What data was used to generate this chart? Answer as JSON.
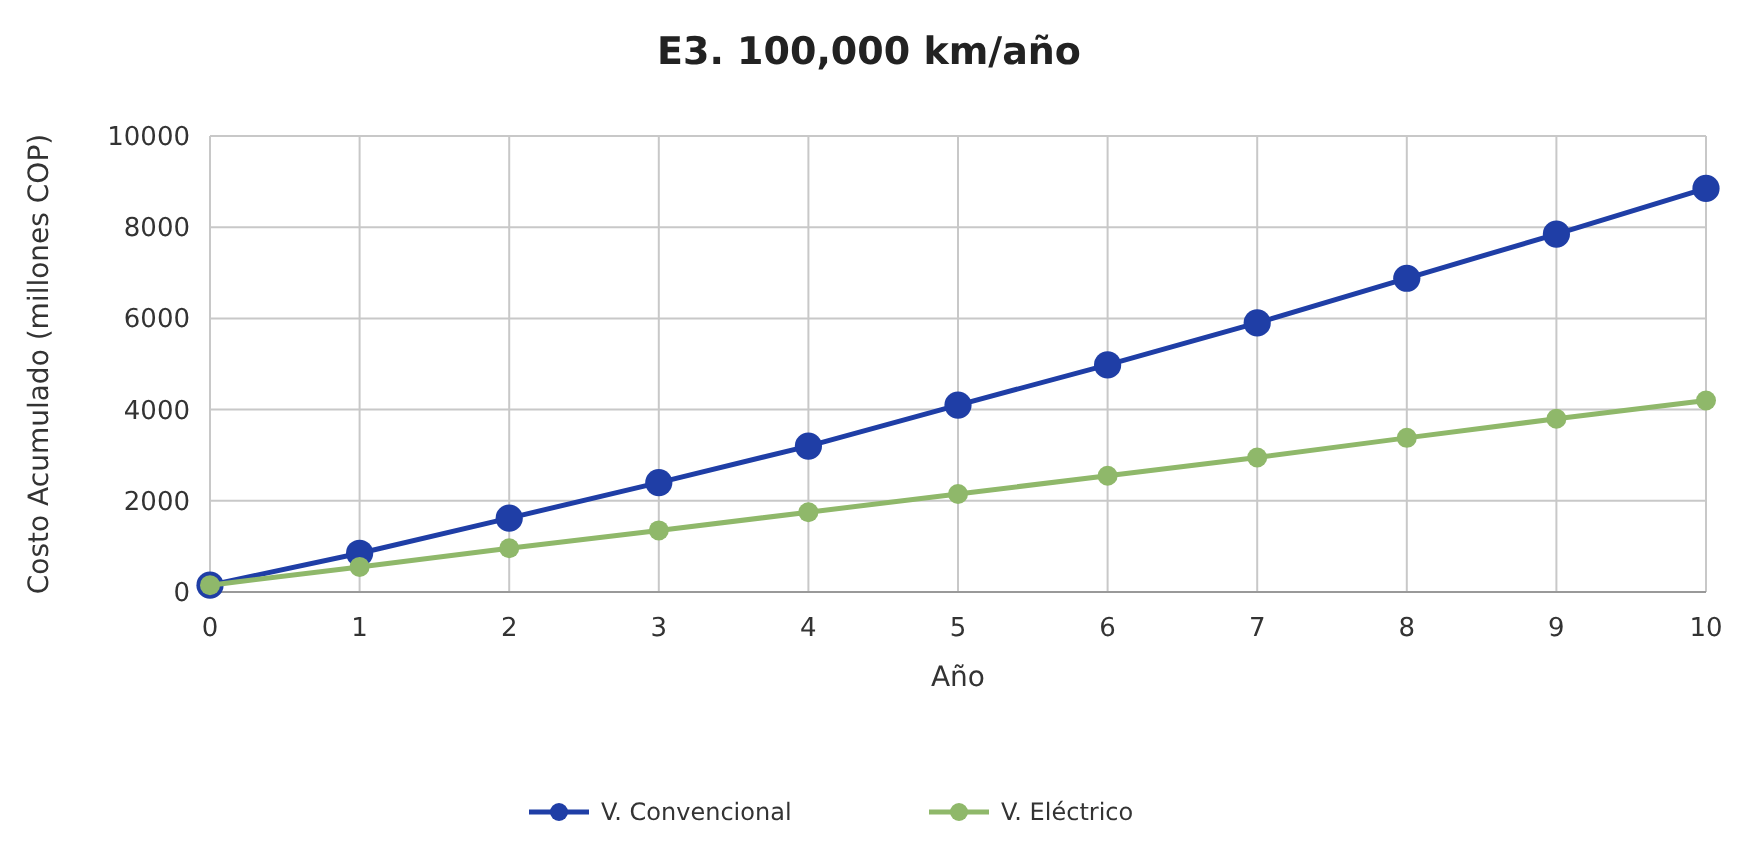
{
  "chart_data": {
    "type": "line",
    "title": "E3. 100,000 km/año",
    "xlabel": "Año",
    "ylabel": "Costo Acumulado (millones COP)",
    "x": [
      0,
      1,
      2,
      3,
      4,
      5,
      6,
      7,
      8,
      9,
      10
    ],
    "series": [
      {
        "name": "V. Convencional",
        "color": "#1f3ea6",
        "values": [
          150,
          850,
          1620,
          2400,
          3200,
          4100,
          4980,
          5900,
          6880,
          7850,
          8850
        ]
      },
      {
        "name": "V. Eléctrico",
        "color": "#8fb86a",
        "values": [
          150,
          550,
          960,
          1350,
          1750,
          2150,
          2550,
          2950,
          3380,
          3800,
          4200
        ]
      }
    ],
    "xlim": [
      0,
      10
    ],
    "xticks": [
      0,
      1,
      2,
      3,
      4,
      5,
      6,
      7,
      8,
      9,
      10
    ],
    "ylim": [
      0,
      10000
    ],
    "yticks": [
      0,
      2000,
      4000,
      6000,
      8000,
      10000
    ],
    "grid": true,
    "legend": "bottom",
    "marker": "circle",
    "line_style": "solid"
  }
}
